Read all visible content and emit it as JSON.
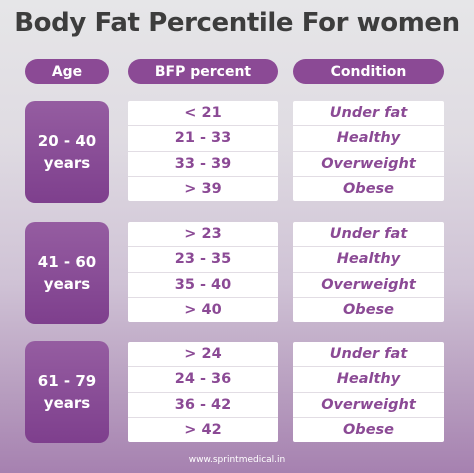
{
  "title": "Body Fat Percentile For women",
  "headers": {
    "age": "Age",
    "bfp": "BFP percent",
    "condition": "Condition"
  },
  "groups": [
    {
      "age_line1": "20 - 40",
      "age_line2": "years",
      "bfp": [
        "< 21",
        "21 - 33",
        "33 - 39",
        "> 39"
      ],
      "condition": [
        "Under fat",
        "Healthy",
        "Overweight",
        "Obese"
      ]
    },
    {
      "age_line1": "41 - 60",
      "age_line2": "years",
      "bfp": [
        "> 23",
        "23 - 35",
        "35 - 40",
        "> 40"
      ],
      "condition": [
        "Under fat",
        "Healthy",
        "Overweight",
        "Obese"
      ]
    },
    {
      "age_line1": "61 - 79",
      "age_line2": "years",
      "bfp": [
        "> 24",
        "24 - 36",
        "36 - 42",
        "> 42"
      ],
      "condition": [
        "Under fat",
        "Healthy",
        "Overweight",
        "Obese"
      ]
    }
  ],
  "footer": "www.sprintmedical.in",
  "colors": {
    "accent": "#8b4a95",
    "title": "#3d3d3d"
  }
}
